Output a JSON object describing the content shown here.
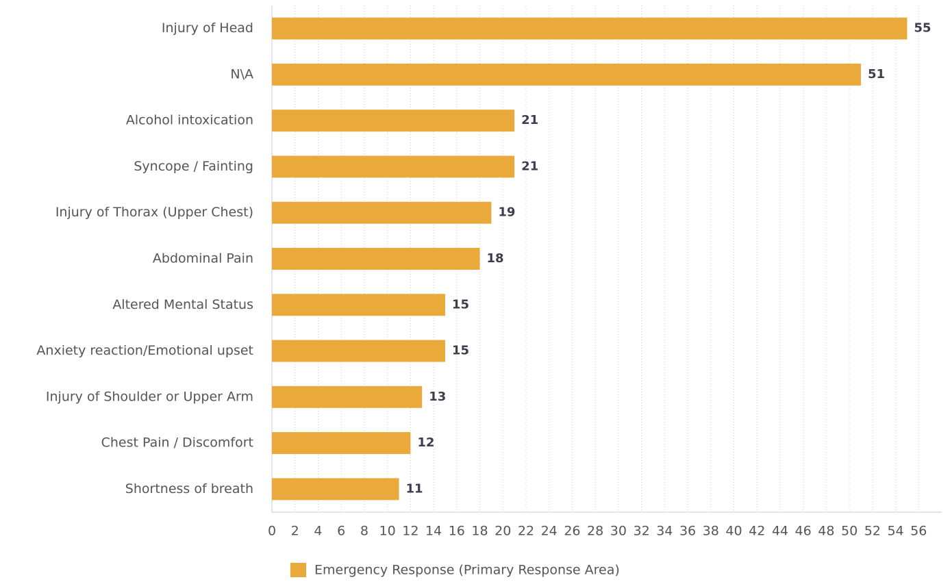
{
  "chart_data": {
    "type": "bar",
    "orientation": "horizontal",
    "categories": [
      "Injury of Head",
      "N\\A",
      "Alcohol intoxication",
      "Syncope / Fainting",
      "Injury of Thorax (Upper Chest)",
      "Abdominal Pain",
      "Altered Mental Status",
      "Anxiety reaction/Emotional upset",
      "Injury of Shoulder or Upper Arm",
      "Chest Pain / Discomfort",
      "Shortness of breath"
    ],
    "series": [
      {
        "name": "Emergency Response (Primary Response Area)",
        "color": "#e9a93b",
        "values": [
          55,
          51,
          21,
          21,
          19,
          18,
          15,
          15,
          13,
          12,
          11
        ]
      }
    ],
    "xlim": [
      0,
      58
    ],
    "xticks": [
      0,
      2,
      4,
      6,
      8,
      10,
      12,
      14,
      16,
      18,
      20,
      22,
      24,
      26,
      28,
      30,
      32,
      34,
      36,
      38,
      40,
      42,
      44,
      46,
      48,
      50,
      52,
      54,
      56
    ],
    "grid": true,
    "legend": "bottom"
  }
}
